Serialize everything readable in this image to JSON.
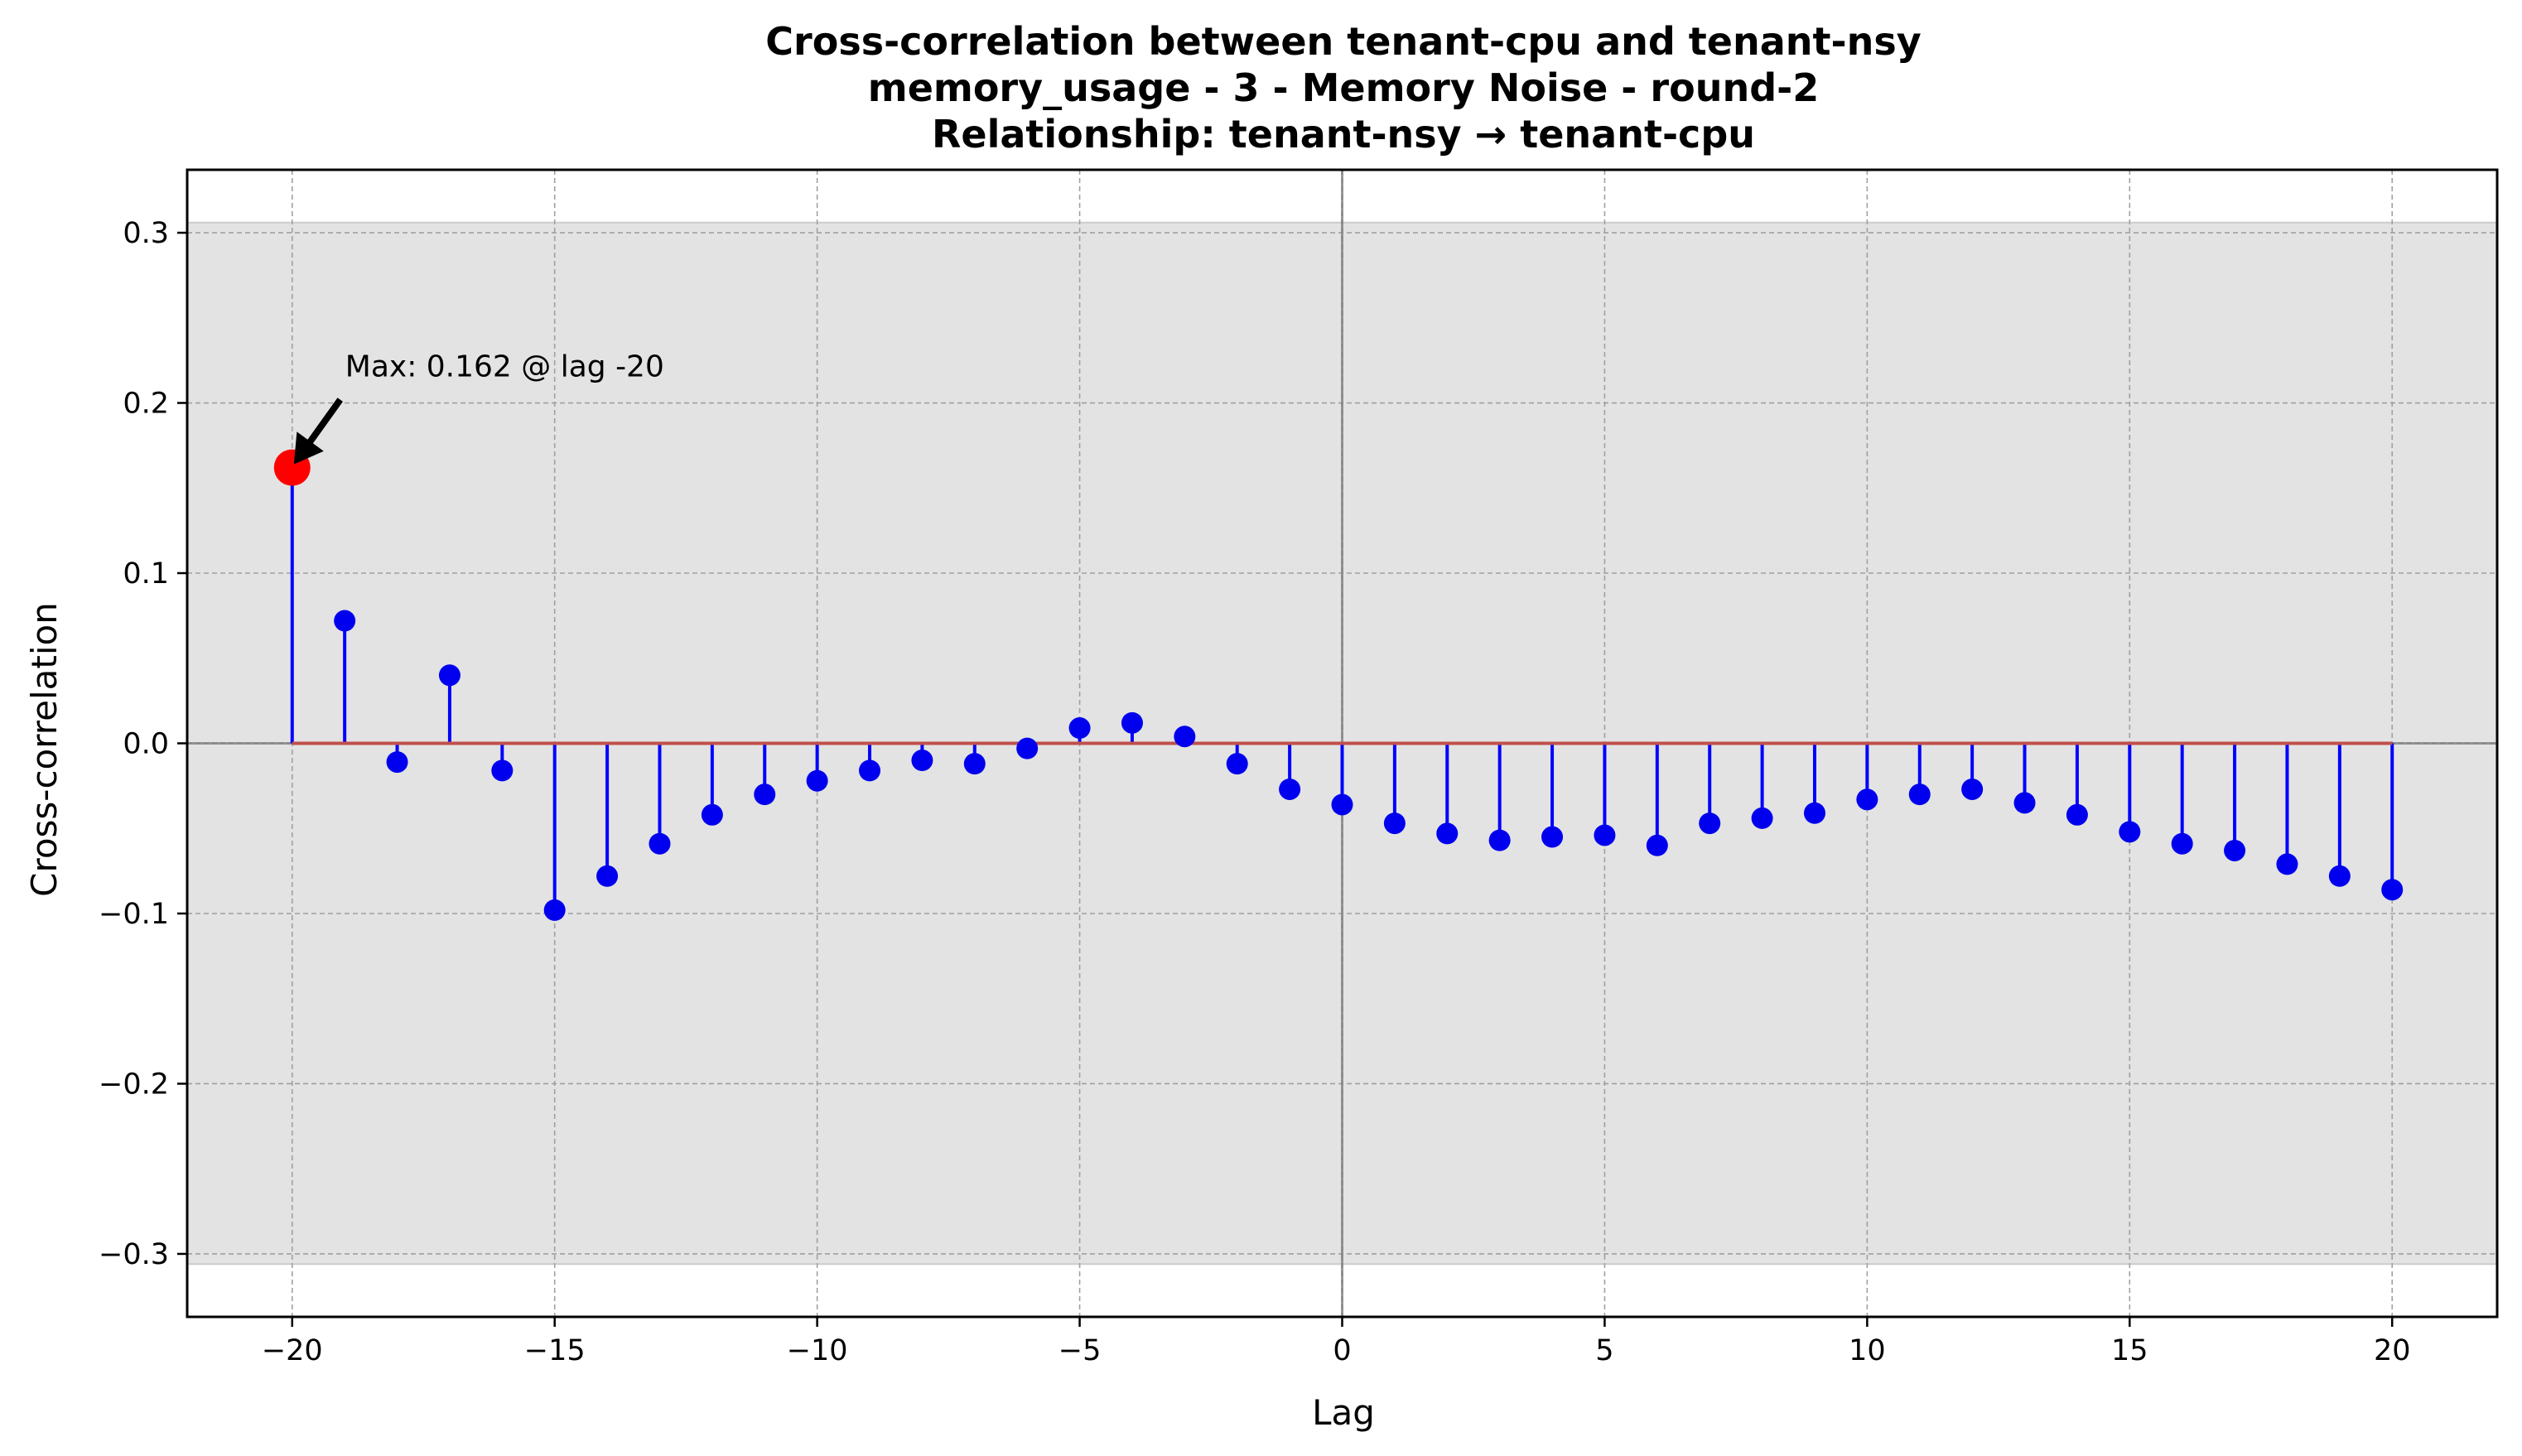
{
  "chart_data": {
    "type": "stem",
    "title_lines": [
      "Cross-correlation between tenant-cpu and tenant-nsy",
      "memory_usage - 3 - Memory Noise - round-2",
      "Relationship: tenant-nsy → tenant-cpu"
    ],
    "xlabel": "Lag",
    "ylabel": "Cross-correlation",
    "xlim": [
      -22,
      22
    ],
    "ylim": [
      -0.337,
      0.337
    ],
    "x_ticks": [
      -20,
      -15,
      -10,
      -5,
      0,
      5,
      10,
      15,
      20
    ],
    "x_tick_labels": [
      "−20",
      "−15",
      "−10",
      "−5",
      "0",
      "5",
      "10",
      "15",
      "20"
    ],
    "y_ticks": [
      0.3,
      0.2,
      0.1,
      0.0,
      -0.1,
      -0.2,
      -0.3
    ],
    "y_tick_labels": [
      "0.3",
      "0.2",
      "0.1",
      "0.0",
      "−0.1",
      "−0.2",
      "−0.3"
    ],
    "grid": true,
    "confidence_band": [
      -0.306,
      0.306
    ],
    "lags": [
      -20,
      -19,
      -18,
      -17,
      -16,
      -15,
      -14,
      -13,
      -12,
      -11,
      -10,
      -9,
      -8,
      -7,
      -6,
      -5,
      -4,
      -3,
      -2,
      -1,
      0,
      1,
      2,
      3,
      4,
      5,
      6,
      7,
      8,
      9,
      10,
      11,
      12,
      13,
      14,
      15,
      16,
      17,
      18,
      19,
      20
    ],
    "values": [
      0.162,
      0.072,
      -0.011,
      0.04,
      -0.016,
      -0.098,
      -0.078,
      -0.059,
      -0.042,
      -0.03,
      -0.022,
      -0.016,
      -0.01,
      -0.012,
      -0.003,
      0.009,
      0.012,
      0.004,
      -0.012,
      -0.027,
      -0.036,
      -0.047,
      -0.053,
      -0.057,
      -0.055,
      -0.054,
      -0.06,
      -0.047,
      -0.044,
      -0.041,
      -0.033,
      -0.03,
      -0.027,
      -0.035,
      -0.042,
      -0.052,
      -0.059,
      -0.063,
      -0.071,
      -0.078,
      -0.086
    ],
    "max_point": {
      "lag": -20,
      "value": 0.162
    },
    "annotation": "Max: 0.162 @ lag -20",
    "colors": {
      "stem": "#0000ff",
      "marker": "#0000ee",
      "max_marker": "#ff0000",
      "baseline": "#c0504d",
      "band": "#e3e3e3",
      "zero_lines": "#808080"
    }
  }
}
